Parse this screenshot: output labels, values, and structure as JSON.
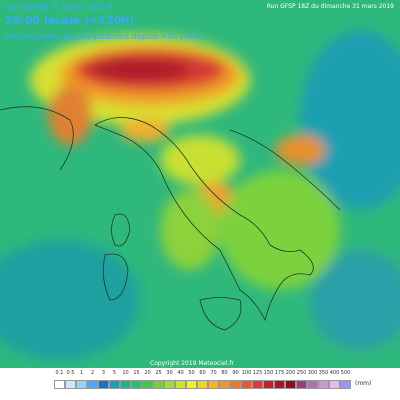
{
  "header": {
    "date": "vendredi 5 avril 2019",
    "time": "20:00 locale (+120h)",
    "run": "Run GFSP 18Z du dimanche 31 mars 2019",
    "field": "Accumulation de précipitations depuis +0h (mm)"
  },
  "footer": {
    "copyright": "Copyright 2019 Meteociel.fr"
  },
  "legend": {
    "unit": "(mm)",
    "items": [
      {
        "label": "0.1",
        "color": "#ffffff"
      },
      {
        "label": "0.5",
        "color": "#c8e8ff"
      },
      {
        "label": "1",
        "color": "#96d2fa"
      },
      {
        "label": "2",
        "color": "#50a5f5"
      },
      {
        "label": "3",
        "color": "#1e6ed2"
      },
      {
        "label": "5",
        "color": "#16a0b4"
      },
      {
        "label": "10",
        "color": "#1eb48c"
      },
      {
        "label": "15",
        "color": "#26c06e"
      },
      {
        "label": "20",
        "color": "#3cc84a"
      },
      {
        "label": "25",
        "color": "#6ed23c"
      },
      {
        "label": "30",
        "color": "#a0dc32"
      },
      {
        "label": "40",
        "color": "#c8e628"
      },
      {
        "label": "50",
        "color": "#f0f01e"
      },
      {
        "label": "60",
        "color": "#f5d21e"
      },
      {
        "label": "70",
        "color": "#f5b41e"
      },
      {
        "label": "80",
        "color": "#f09628"
      },
      {
        "label": "90",
        "color": "#eb7832"
      },
      {
        "label": "100",
        "color": "#e65a32"
      },
      {
        "label": "125",
        "color": "#dc3c32"
      },
      {
        "label": "150",
        "color": "#c81e28"
      },
      {
        "label": "175",
        "color": "#aa1428"
      },
      {
        "label": "200",
        "color": "#8c0a28"
      },
      {
        "label": "250",
        "color": "#a03c78"
      },
      {
        "label": "300",
        "color": "#b46eb4"
      },
      {
        "label": "350",
        "color": "#c896dc"
      },
      {
        "label": "400",
        "color": "#dcbef0"
      },
      {
        "label": "500",
        "color": "#9696ff"
      }
    ]
  }
}
